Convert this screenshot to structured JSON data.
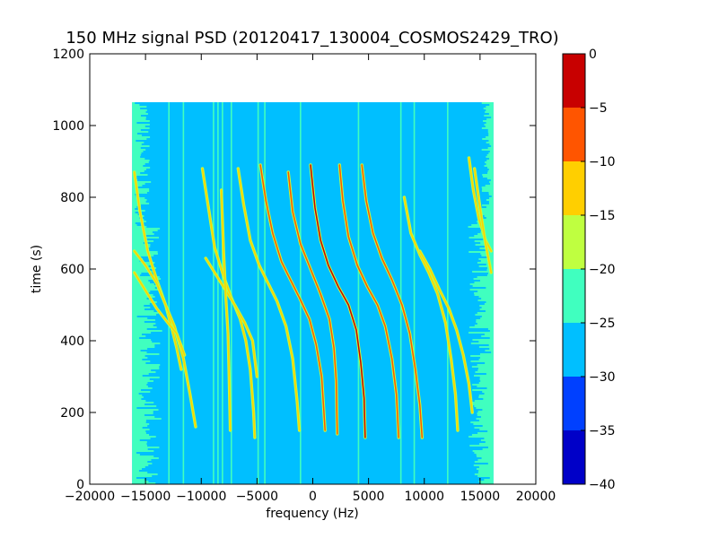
{
  "chart_data": {
    "type": "heatmap",
    "title": "150 MHz signal PSD (20120417_130004_COSMOS2429_TRO)",
    "xlabel": "frequency (Hz)",
    "ylabel": "time (s)",
    "xlim": [
      -20000,
      20000
    ],
    "ylim": [
      0,
      1200
    ],
    "xticks": [
      -20000,
      -15000,
      -10000,
      -5000,
      0,
      5000,
      10000,
      15000,
      20000
    ],
    "yticks": [
      0,
      200,
      400,
      600,
      800,
      1000,
      1200
    ],
    "data_extent": {
      "x": [
        -16200,
        16200
      ],
      "y": [
        0,
        1065
      ]
    },
    "background_level": -27.5,
    "edge_noise_level": -22.5,
    "colorbar": {
      "levels": [
        -40,
        -35,
        -30,
        -25,
        -20,
        -15,
        -10,
        -5,
        0
      ],
      "colors": [
        "#0000c8",
        "#0040ff",
        "#00bfff",
        "#40ffbf",
        "#bfff40",
        "#ffcf00",
        "#ff5500",
        "#c80000"
      ],
      "tick_labels": [
        "0",
        "−5",
        "−10",
        "−15",
        "−20",
        "−25",
        "−30",
        "−35",
        "−40"
      ]
    },
    "vertical_lines": [
      {
        "x": -12900,
        "level": -22.5,
        "y": [
          0,
          1065
        ]
      },
      {
        "x": -11600,
        "level": -22.5,
        "y": [
          0,
          1065
        ]
      },
      {
        "x": -8900,
        "level": -22.5,
        "y": [
          0,
          1065
        ]
      },
      {
        "x": -8500,
        "level": -22.5,
        "y": [
          0,
          1065
        ]
      },
      {
        "x": -8100,
        "level": -22.5,
        "y": [
          0,
          1065
        ]
      },
      {
        "x": -7300,
        "level": -22.5,
        "y": [
          0,
          1065
        ]
      },
      {
        "x": -4900,
        "level": -22.5,
        "y": [
          0,
          1065
        ]
      },
      {
        "x": -4300,
        "level": -22.5,
        "y": [
          0,
          1065
        ]
      },
      {
        "x": -1100,
        "level": -22.5,
        "y": [
          0,
          1065
        ]
      },
      {
        "x": 4100,
        "level": -22.5,
        "y": [
          0,
          1065
        ]
      },
      {
        "x": 7900,
        "level": -22.5,
        "y": [
          0,
          1065
        ]
      },
      {
        "x": 9100,
        "level": -22.5,
        "y": [
          0,
          1065
        ]
      },
      {
        "x": 12100,
        "level": -22.5,
        "y": [
          0,
          1065
        ]
      }
    ],
    "signal_tracks": [
      {
        "level": -12.5,
        "points": [
          [
            -16000,
            870
          ],
          [
            -15500,
            760
          ],
          [
            -14800,
            650
          ],
          [
            -14000,
            570
          ],
          [
            -13200,
            500
          ],
          [
            -12600,
            430
          ],
          [
            -12200,
            380
          ],
          [
            -11800,
            320
          ]
        ]
      },
      {
        "level": -12.5,
        "points": [
          [
            -16000,
            650
          ],
          [
            -15000,
            610
          ],
          [
            -14000,
            560
          ],
          [
            -13200,
            500
          ],
          [
            -12400,
            440
          ],
          [
            -11600,
            350
          ],
          [
            -11000,
            250
          ],
          [
            -10500,
            160
          ]
        ]
      },
      {
        "level": -12.5,
        "points": [
          [
            -16000,
            590
          ],
          [
            -15000,
            540
          ],
          [
            -14000,
            490
          ],
          [
            -13000,
            450
          ],
          [
            -12200,
            420
          ],
          [
            -11500,
            360
          ]
        ]
      },
      {
        "level": -12.5,
        "points": [
          [
            -9900,
            880
          ],
          [
            -9400,
            780
          ],
          [
            -8800,
            660
          ],
          [
            -8000,
            580
          ],
          [
            -7300,
            520
          ],
          [
            -6500,
            460
          ],
          [
            -6000,
            400
          ],
          [
            -5600,
            320
          ],
          [
            -5300,
            200
          ],
          [
            -5200,
            130
          ]
        ]
      },
      {
        "level": -12.5,
        "points": [
          [
            -9600,
            630
          ],
          [
            -8800,
            590
          ],
          [
            -8000,
            550
          ],
          [
            -7000,
            500
          ],
          [
            -6100,
            450
          ],
          [
            -5400,
            400
          ],
          [
            -5000,
            300
          ]
        ]
      },
      {
        "level": -12.5,
        "points": [
          [
            -8200,
            820
          ],
          [
            -8000,
            650
          ],
          [
            -7800,
            520
          ],
          [
            -7600,
            420
          ],
          [
            -7500,
            300
          ],
          [
            -7400,
            150
          ]
        ]
      },
      {
        "level": -12.5,
        "points": [
          [
            -6700,
            880
          ],
          [
            -6200,
            780
          ],
          [
            -5600,
            680
          ],
          [
            -4800,
            610
          ],
          [
            -4000,
            560
          ],
          [
            -3200,
            510
          ],
          [
            -2400,
            440
          ],
          [
            -1800,
            350
          ],
          [
            -1400,
            230
          ],
          [
            -1200,
            150
          ]
        ]
      },
      {
        "level": -7.5,
        "points": [
          [
            -4700,
            890
          ],
          [
            -4200,
            790
          ],
          [
            -3600,
            700
          ],
          [
            -2800,
            620
          ],
          [
            -2000,
            570
          ],
          [
            -1200,
            520
          ],
          [
            -300,
            460
          ],
          [
            300,
            390
          ],
          [
            800,
            300
          ],
          [
            1100,
            150
          ]
        ]
      },
      {
        "level": -2.5,
        "points": [
          [
            -200,
            890
          ],
          [
            200,
            770
          ],
          [
            700,
            680
          ],
          [
            1400,
            610
          ],
          [
            2300,
            550
          ],
          [
            3200,
            500
          ],
          [
            3900,
            430
          ],
          [
            4300,
            340
          ],
          [
            4600,
            240
          ],
          [
            4700,
            130
          ]
        ]
      },
      {
        "level": -7.5,
        "points": [
          [
            -2200,
            870
          ],
          [
            -1800,
            760
          ],
          [
            -1100,
            670
          ],
          [
            -200,
            600
          ],
          [
            700,
            530
          ],
          [
            1500,
            460
          ],
          [
            1900,
            380
          ],
          [
            2100,
            290
          ],
          [
            2200,
            140
          ]
        ]
      },
      {
        "level": -7.5,
        "points": [
          [
            2400,
            890
          ],
          [
            2700,
            790
          ],
          [
            3200,
            690
          ],
          [
            4000,
            610
          ],
          [
            4900,
            550
          ],
          [
            5800,
            500
          ],
          [
            6500,
            440
          ],
          [
            7100,
            350
          ],
          [
            7500,
            250
          ],
          [
            7700,
            130
          ]
        ]
      },
      {
        "level": -7.5,
        "points": [
          [
            4400,
            890
          ],
          [
            4800,
            790
          ],
          [
            5400,
            700
          ],
          [
            6200,
            630
          ],
          [
            7100,
            570
          ],
          [
            8000,
            500
          ],
          [
            8700,
            420
          ],
          [
            9200,
            320
          ],
          [
            9600,
            220
          ],
          [
            9800,
            130
          ]
        ]
      },
      {
        "level": -12.5,
        "points": [
          [
            8200,
            800
          ],
          [
            8800,
            700
          ],
          [
            9600,
            640
          ],
          [
            10400,
            590
          ],
          [
            11200,
            530
          ],
          [
            11900,
            450
          ],
          [
            12400,
            350
          ],
          [
            12800,
            250
          ],
          [
            13000,
            150
          ]
        ]
      },
      {
        "level": -12.5,
        "points": [
          [
            9600,
            650
          ],
          [
            10500,
            600
          ],
          [
            11400,
            540
          ],
          [
            12200,
            490
          ],
          [
            12900,
            430
          ],
          [
            13500,
            360
          ],
          [
            14000,
            280
          ],
          [
            14300,
            200
          ]
        ]
      },
      {
        "level": -12.5,
        "points": [
          [
            14000,
            910
          ],
          [
            14400,
            820
          ],
          [
            14900,
            740
          ],
          [
            15500,
            680
          ],
          [
            16000,
            650
          ]
        ]
      },
      {
        "level": -12.5,
        "points": [
          [
            14500,
            880
          ],
          [
            15000,
            770
          ],
          [
            15500,
            670
          ],
          [
            16000,
            590
          ]
        ]
      }
    ]
  }
}
